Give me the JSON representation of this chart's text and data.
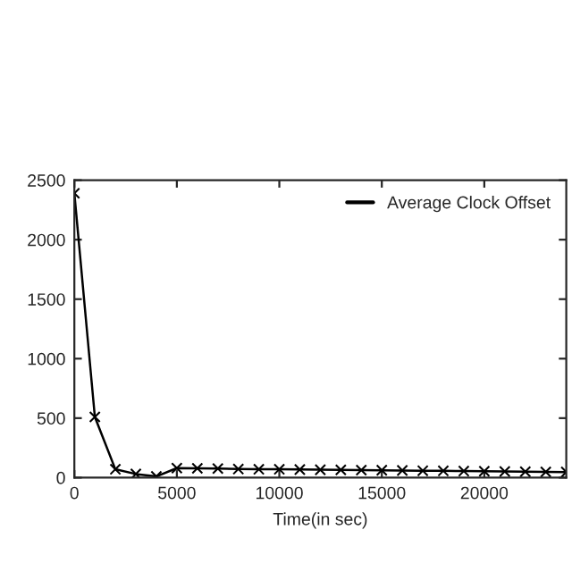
{
  "chart_data": {
    "type": "line",
    "xlabel": "Time(in sec)",
    "x": [
      0,
      1000,
      2000,
      3000,
      4000,
      5000,
      6000,
      7000,
      8000,
      9000,
      10000,
      11000,
      12000,
      13000,
      14000,
      15000,
      16000,
      17000,
      18000,
      19000,
      20000,
      21000,
      22000,
      23000,
      24000
    ],
    "series": [
      {
        "name": "Average Clock Offset",
        "color": "#000000",
        "values": [
          2390,
          510,
          70,
          30,
          10,
          80,
          78,
          76,
          72,
          70,
          70,
          68,
          66,
          65,
          63,
          62,
          60,
          58,
          57,
          55,
          54,
          52,
          50,
          48,
          47
        ]
      }
    ],
    "xlim": [
      0,
      24000
    ],
    "xticks": [
      0,
      5000,
      10000,
      15000,
      20000
    ],
    "ylim": [
      0,
      2500
    ],
    "yticks": [
      0,
      500,
      1000,
      1500,
      2000,
      2500
    ],
    "marker": "cross",
    "line_style": "solid",
    "grid": false,
    "legend": "top right"
  }
}
